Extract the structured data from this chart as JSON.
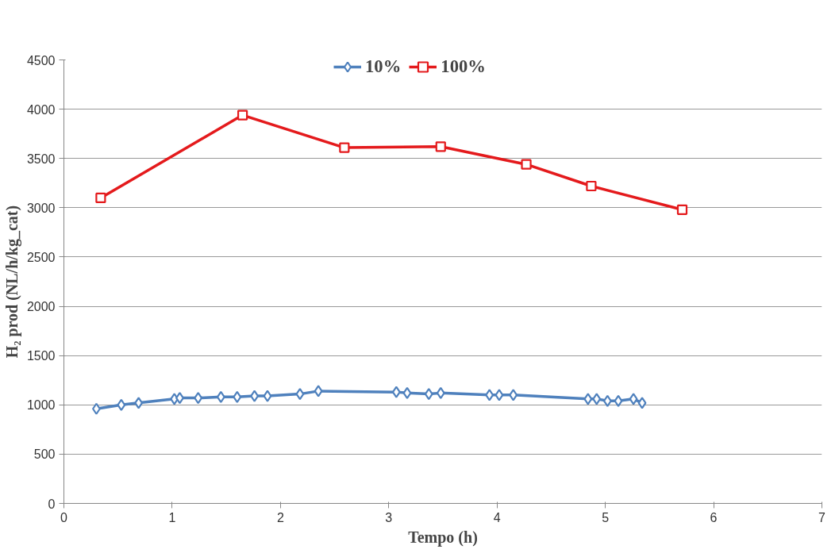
{
  "chart_data": {
    "type": "line",
    "xlabel": "Tempo (h)",
    "ylabel": "H₂ prod (NL/h/kg_cat)",
    "xlim": [
      0,
      7
    ],
    "xticks": [
      0,
      1,
      2,
      3,
      4,
      5,
      6,
      7
    ],
    "ylim": [
      0,
      4500
    ],
    "yticks": [
      0,
      500,
      1000,
      1500,
      2000,
      2500,
      3000,
      3500,
      4000,
      4500
    ],
    "grid": "y",
    "legend": "top",
    "series": [
      {
        "name": "10%",
        "color": "#4f81bd",
        "marker": "diamond",
        "x": [
          0.3,
          0.53,
          0.69,
          1.02,
          1.07,
          1.24,
          1.45,
          1.6,
          1.76,
          1.88,
          2.18,
          2.35,
          3.07,
          3.17,
          3.37,
          3.48,
          3.93,
          4.02,
          4.15,
          4.84,
          4.92,
          5.02,
          5.12,
          5.26,
          5.34
        ],
        "values": [
          960,
          1000,
          1020,
          1060,
          1070,
          1070,
          1080,
          1080,
          1090,
          1090,
          1110,
          1140,
          1130,
          1120,
          1110,
          1120,
          1100,
          1100,
          1100,
          1060,
          1060,
          1040,
          1040,
          1060,
          1020
        ]
      },
      {
        "name": "100%",
        "color": "#e41a1c",
        "marker": "square",
        "x": [
          0.34,
          1.65,
          2.59,
          3.48,
          4.27,
          4.87,
          5.71
        ],
        "values": [
          3100,
          3940,
          3610,
          3620,
          3440,
          3220,
          2980
        ]
      }
    ]
  }
}
